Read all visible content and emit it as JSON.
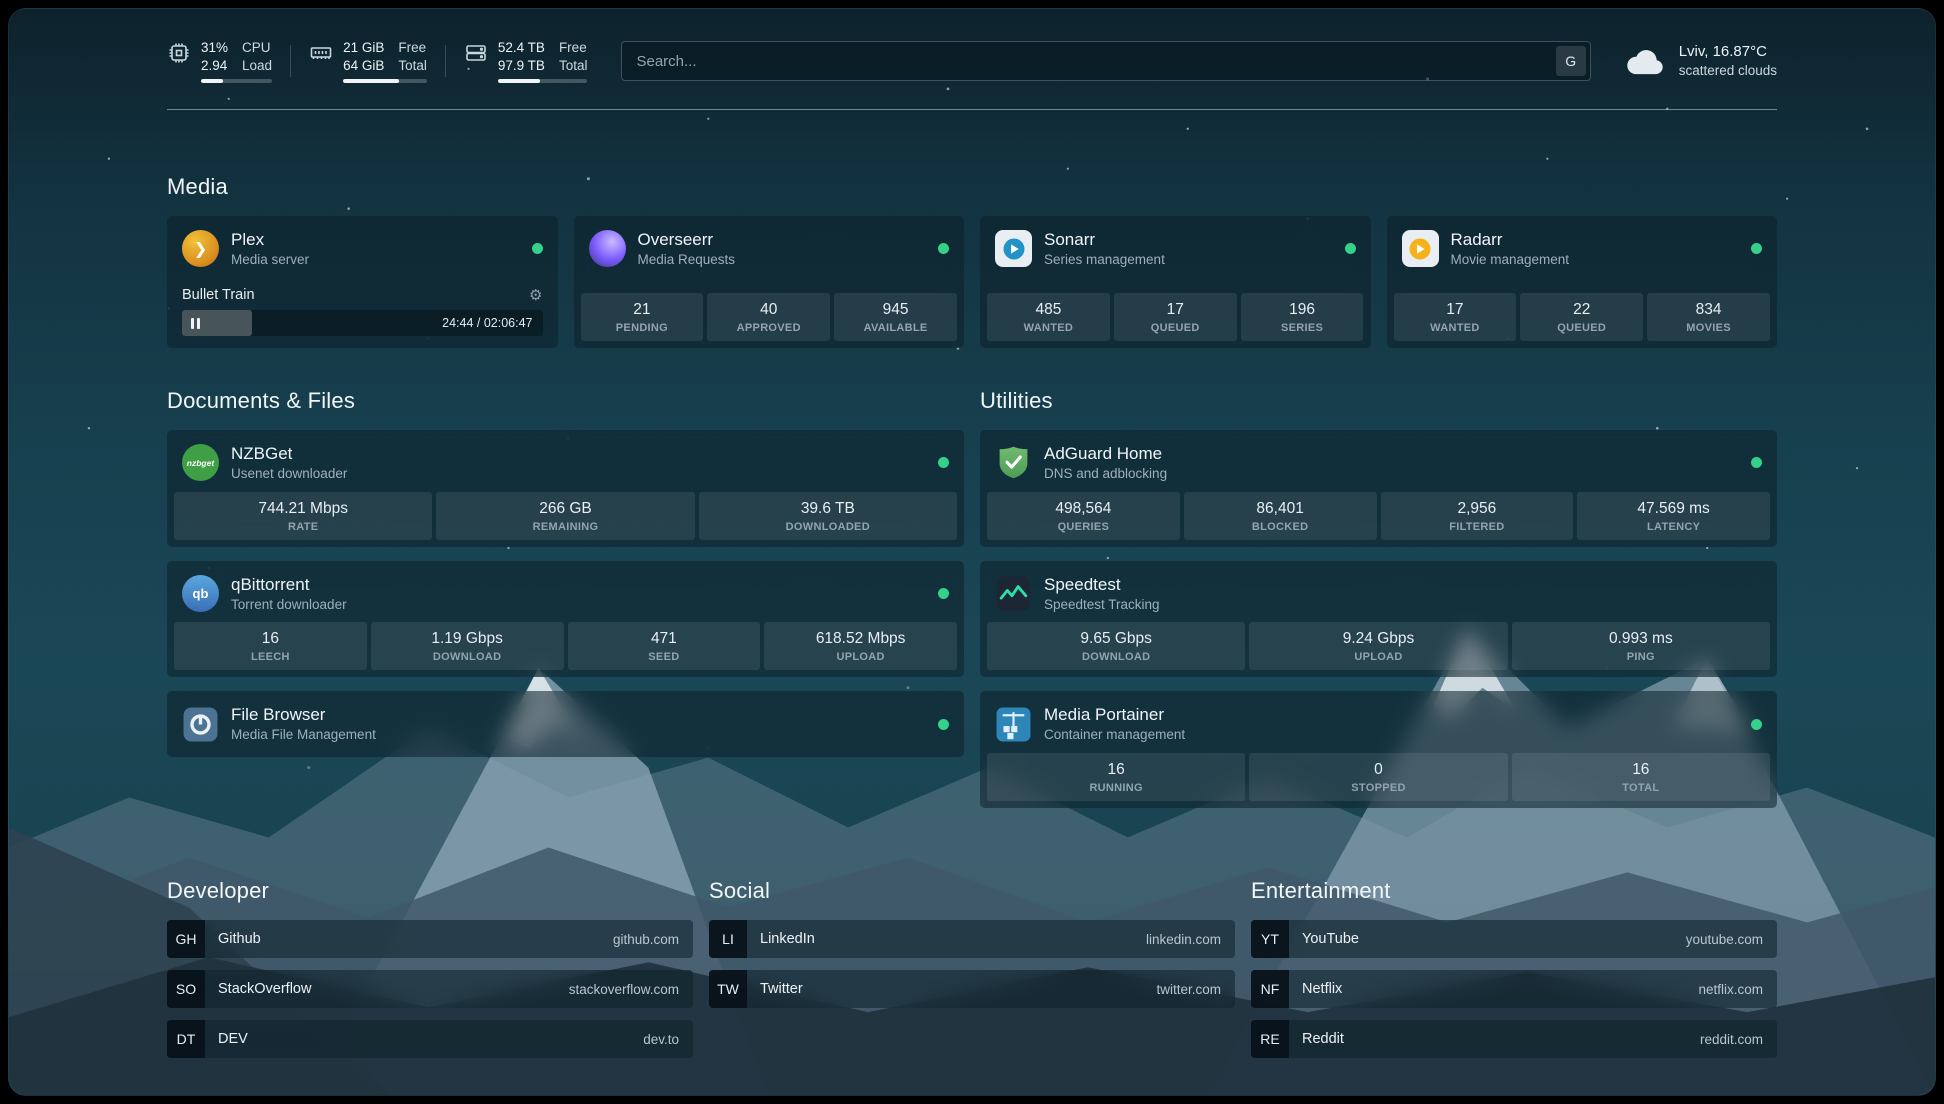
{
  "header": {
    "cpu": {
      "value_top": "31%",
      "value_bottom": "2.94",
      "label_top": "CPU",
      "label_bottom": "Load",
      "progress": 31
    },
    "ram": {
      "value_top": "21 GiB",
      "value_bottom": "64 GiB",
      "label_top": "Free",
      "label_bottom": "Total",
      "progress": 67
    },
    "disk": {
      "value_top": "52.4 TB",
      "value_bottom": "97.9 TB",
      "label_top": "Free",
      "label_bottom": "Total",
      "progress": 47
    },
    "search": {
      "placeholder": "Search...",
      "button_label": "G"
    },
    "weather": {
      "location": "Lviv, 16.87°C",
      "condition": "scattered clouds"
    }
  },
  "sections": {
    "media": {
      "title": "Media"
    },
    "documents": {
      "title": "Documents & Files"
    },
    "utilities": {
      "title": "Utilities"
    },
    "developer": {
      "title": "Developer"
    },
    "social": {
      "title": "Social"
    },
    "entertainment": {
      "title": "Entertainment"
    }
  },
  "apps": {
    "plex": {
      "name": "Plex",
      "desc": "Media server",
      "now_playing": "Bullet Train",
      "time": "24:44 / 02:06:47",
      "progress": 19.5
    },
    "overseerr": {
      "name": "Overseerr",
      "desc": "Media Requests",
      "stats": [
        {
          "value": "21",
          "label": "PENDING"
        },
        {
          "value": "40",
          "label": "APPROVED"
        },
        {
          "value": "945",
          "label": "AVAILABLE"
        }
      ]
    },
    "sonarr": {
      "name": "Sonarr",
      "desc": "Series management",
      "stats": [
        {
          "value": "485",
          "label": "WANTED"
        },
        {
          "value": "17",
          "label": "QUEUED"
        },
        {
          "value": "196",
          "label": "SERIES"
        }
      ]
    },
    "radarr": {
      "name": "Radarr",
      "desc": "Movie management",
      "stats": [
        {
          "value": "17",
          "label": "WANTED"
        },
        {
          "value": "22",
          "label": "QUEUED"
        },
        {
          "value": "834",
          "label": "MOVIES"
        }
      ]
    },
    "nzbget": {
      "name": "NZBGet",
      "desc": "Usenet downloader",
      "stats": [
        {
          "value": "744.21 Mbps",
          "label": "RATE"
        },
        {
          "value": "266 GB",
          "label": "REMAINING"
        },
        {
          "value": "39.6 TB",
          "label": "DOWNLOADED"
        }
      ]
    },
    "qbittorrent": {
      "name": "qBittorrent",
      "desc": "Torrent downloader",
      "stats": [
        {
          "value": "16",
          "label": "LEECH"
        },
        {
          "value": "1.19 Gbps",
          "label": "DOWNLOAD"
        },
        {
          "value": "471",
          "label": "SEED"
        },
        {
          "value": "618.52 Mbps",
          "label": "UPLOAD"
        }
      ]
    },
    "filebrowser": {
      "name": "File Browser",
      "desc": "Media File Management"
    },
    "adguard": {
      "name": "AdGuard Home",
      "desc": "DNS and adblocking",
      "stats": [
        {
          "value": "498,564",
          "label": "QUERIES"
        },
        {
          "value": "86,401",
          "label": "BLOCKED"
        },
        {
          "value": "2,956",
          "label": "FILTERED"
        },
        {
          "value": "47.569 ms",
          "label": "LATENCY"
        }
      ]
    },
    "speedtest": {
      "name": "Speedtest",
      "desc": "Speedtest Tracking",
      "stats": [
        {
          "value": "9.65 Gbps",
          "label": "DOWNLOAD"
        },
        {
          "value": "9.24 Gbps",
          "label": "UPLOAD"
        },
        {
          "value": "0.993 ms",
          "label": "PING"
        }
      ]
    },
    "portainer": {
      "name": "Media Portainer",
      "desc": "Container management",
      "stats": [
        {
          "value": "16",
          "label": "RUNNING"
        },
        {
          "value": "0",
          "label": "STOPPED"
        },
        {
          "value": "16",
          "label": "TOTAL"
        }
      ]
    }
  },
  "icon_text": {
    "plex": "❯",
    "nzbget": "nzbget",
    "qbittorrent": "qb",
    "gear": "⚙"
  },
  "bookmarks": {
    "developer": [
      {
        "abbr": "GH",
        "name": "Github",
        "url": "github.com"
      },
      {
        "abbr": "SO",
        "name": "StackOverflow",
        "url": "stackoverflow.com"
      },
      {
        "abbr": "DT",
        "name": "DEV",
        "url": "dev.to"
      }
    ],
    "social": [
      {
        "abbr": "LI",
        "name": "LinkedIn",
        "url": "linkedin.com"
      },
      {
        "abbr": "TW",
        "name": "Twitter",
        "url": "twitter.com"
      }
    ],
    "entertainment": [
      {
        "abbr": "YT",
        "name": "YouTube",
        "url": "youtube.com"
      },
      {
        "abbr": "NF",
        "name": "Netflix",
        "url": "netflix.com"
      },
      {
        "abbr": "RE",
        "name": "Reddit",
        "url": "reddit.com"
      }
    ]
  },
  "colors": {
    "status_online": "#35d08a",
    "plex_gold": "#d98f1f",
    "adguard_green": "#5aad64",
    "portainer_blue": "#2e86b8"
  }
}
